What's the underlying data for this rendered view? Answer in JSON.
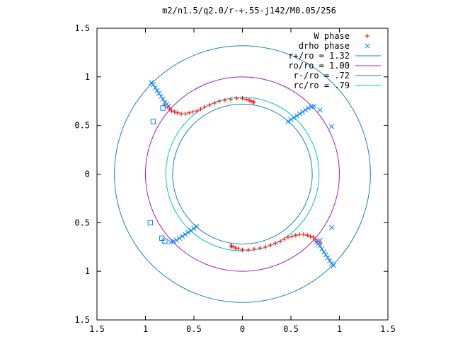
{
  "chart_data": {
    "type": "scatter",
    "title": "m2/n1.5/q2.0/r-+.55-j142/M0.05/256",
    "xlabel": "",
    "ylabel": "",
    "xlim": [
      -1.5,
      1.5
    ],
    "ylim": [
      -1.5,
      1.5
    ],
    "x_ticks": [
      "1.5",
      "1",
      "0.5",
      "0",
      "0.5",
      "1",
      "1.5"
    ],
    "y_ticks": [
      "1.5",
      "1",
      "0.5",
      "0",
      "0.5",
      "1",
      "1.5"
    ],
    "grid": false,
    "legend_position": "top-right",
    "series": [
      {
        "name": "W phase",
        "marker": "plus",
        "color": "#ff0000",
        "points": [
          [
            -0.8,
            0.71
          ],
          [
            -0.77,
            0.69
          ],
          [
            -0.75,
            0.67
          ],
          [
            -0.73,
            0.65
          ],
          [
            -0.7,
            0.64
          ],
          [
            -0.67,
            0.63
          ],
          [
            -0.63,
            0.62
          ],
          [
            -0.59,
            0.62
          ],
          [
            -0.55,
            0.63
          ],
          [
            -0.51,
            0.64
          ],
          [
            -0.47,
            0.65
          ],
          [
            -0.43,
            0.67
          ],
          [
            -0.39,
            0.69
          ],
          [
            -0.34,
            0.71
          ],
          [
            -0.29,
            0.73
          ],
          [
            -0.24,
            0.75
          ],
          [
            -0.18,
            0.76
          ],
          [
            -0.12,
            0.77
          ],
          [
            -0.06,
            0.78
          ],
          [
            0.0,
            0.78
          ],
          [
            0.04,
            0.77
          ],
          [
            0.07,
            0.76
          ],
          [
            0.09,
            0.75
          ],
          [
            0.11,
            0.74
          ],
          [
            0.12,
            0.74
          ],
          [
            0.8,
            -0.71
          ],
          [
            0.77,
            -0.69
          ],
          [
            0.75,
            -0.67
          ],
          [
            0.73,
            -0.65
          ],
          [
            0.7,
            -0.64
          ],
          [
            0.67,
            -0.63
          ],
          [
            0.63,
            -0.62
          ],
          [
            0.59,
            -0.62
          ],
          [
            0.55,
            -0.63
          ],
          [
            0.51,
            -0.64
          ],
          [
            0.47,
            -0.65
          ],
          [
            0.43,
            -0.67
          ],
          [
            0.39,
            -0.69
          ],
          [
            0.34,
            -0.71
          ],
          [
            0.29,
            -0.73
          ],
          [
            0.24,
            -0.75
          ],
          [
            0.18,
            -0.76
          ],
          [
            0.12,
            -0.77
          ],
          [
            0.06,
            -0.78
          ],
          [
            0.0,
            -0.78
          ],
          [
            -0.04,
            -0.77
          ],
          [
            -0.07,
            -0.76
          ],
          [
            -0.09,
            -0.75
          ],
          [
            -0.11,
            -0.74
          ],
          [
            -0.12,
            -0.74
          ]
        ]
      },
      {
        "name": "drho phase",
        "marker": "cross",
        "color": "#0080ff",
        "points": [
          [
            -0.94,
            0.94
          ],
          [
            -0.92,
            0.92
          ],
          [
            -0.9,
            0.89
          ],
          [
            -0.88,
            0.86
          ],
          [
            -0.86,
            0.83
          ],
          [
            -0.84,
            0.8
          ],
          [
            -0.82,
            0.77
          ],
          [
            -0.8,
            0.74
          ],
          [
            -0.78,
            0.72
          ],
          [
            -0.76,
            0.7
          ],
          [
            0.47,
            0.54
          ],
          [
            0.5,
            0.56
          ],
          [
            0.53,
            0.58
          ],
          [
            0.56,
            0.6
          ],
          [
            0.59,
            0.62
          ],
          [
            0.62,
            0.64
          ],
          [
            0.65,
            0.66
          ],
          [
            0.68,
            0.68
          ],
          [
            0.71,
            0.69
          ],
          [
            0.74,
            0.7
          ],
          [
            0.8,
            0.66
          ],
          [
            0.92,
            0.49
          ],
          [
            0.94,
            -0.94
          ],
          [
            0.92,
            -0.92
          ],
          [
            0.9,
            -0.89
          ],
          [
            0.88,
            -0.86
          ],
          [
            0.86,
            -0.83
          ],
          [
            0.84,
            -0.8
          ],
          [
            0.82,
            -0.77
          ],
          [
            0.8,
            -0.74
          ],
          [
            0.78,
            -0.72
          ],
          [
            0.76,
            -0.7
          ],
          [
            -0.47,
            -0.54
          ],
          [
            -0.5,
            -0.56
          ],
          [
            -0.53,
            -0.58
          ],
          [
            -0.56,
            -0.6
          ],
          [
            -0.59,
            -0.62
          ],
          [
            -0.62,
            -0.64
          ],
          [
            -0.65,
            -0.66
          ],
          [
            -0.68,
            -0.68
          ],
          [
            -0.71,
            -0.69
          ],
          [
            -0.74,
            -0.7
          ],
          [
            0.92,
            -0.55
          ],
          [
            0.8,
            -0.68
          ]
        ]
      },
      {
        "name": "",
        "marker": "square",
        "color": "#0080ff",
        "points": [
          [
            -0.82,
            0.68
          ],
          [
            -0.92,
            0.54
          ],
          [
            -0.95,
            -0.5
          ],
          [
            -0.83,
            -0.66
          ],
          [
            -0.8,
            -0.69
          ]
        ]
      }
    ],
    "circles": [
      {
        "name": "r+/ro = 1.32",
        "radius": 1.32,
        "color": "#1e7fc3"
      },
      {
        "name": "ro/ro = 1.00",
        "radius": 1.0,
        "color": "#a020c0"
      },
      {
        "name": "r-/ro = .72",
        "radius": 0.72,
        "color": "#1e7fc3"
      },
      {
        "name": "rc/ro = .79",
        "radius": 0.79,
        "color": "#00c8c8"
      }
    ]
  }
}
